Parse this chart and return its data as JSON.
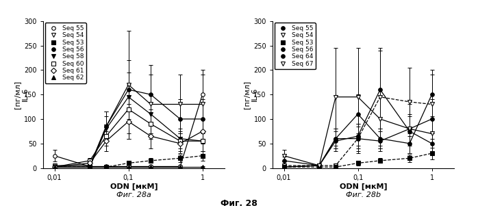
{
  "fig_title": "Фиг. 28",
  "fig_a_title": "Фиг. 28a",
  "fig_b_title": "Фиг. 28b",
  "xlabel": "ODN [мкМ]",
  "ylabel_top": "[пг/мл]",
  "ylabel_bottom": "IL-6",
  "x_values": [
    0.01,
    0.03,
    0.05,
    0.1,
    0.2,
    0.5,
    1.0
  ],
  "ylim_a": [
    0,
    300
  ],
  "ylim_b": [
    0,
    300
  ],
  "yticks_a": [
    0,
    50,
    100,
    150,
    200,
    250,
    300
  ],
  "yticks_b": [
    0,
    50,
    100,
    150,
    200,
    250,
    300
  ],
  "panel_a": {
    "series": [
      {
        "name": "Seq 55",
        "y": [
          25,
          3,
          3,
          3,
          3,
          3,
          150
        ],
        "yerr": [
          12,
          2,
          2,
          2,
          2,
          2,
          50
        ],
        "marker": "o",
        "linestyle": "-",
        "color": "#000000",
        "filled": false
      },
      {
        "name": "Seq 54",
        "y": [
          5,
          5,
          85,
          170,
          130,
          130,
          130
        ],
        "yerr": [
          3,
          3,
          30,
          110,
          60,
          60,
          60
        ],
        "marker": "v",
        "linestyle": "-",
        "color": "#000000",
        "filled": false
      },
      {
        "name": "Seq 53",
        "y": [
          2,
          2,
          2,
          10,
          15,
          20,
          25
        ],
        "yerr": [
          1,
          1,
          1,
          5,
          5,
          8,
          10
        ],
        "marker": "s",
        "linestyle": "--",
        "color": "#000000",
        "filled": true
      },
      {
        "name": "Seq 56",
        "y": [
          2,
          2,
          85,
          160,
          150,
          100,
          100
        ],
        "yerr": [
          1,
          1,
          30,
          60,
          60,
          40,
          40
        ],
        "marker": "o",
        "linestyle": "-",
        "color": "#000000",
        "filled": true
      },
      {
        "name": "Seq 58",
        "y": [
          2,
          2,
          80,
          145,
          110,
          60,
          55
        ],
        "yerr": [
          1,
          1,
          25,
          50,
          40,
          20,
          20
        ],
        "marker": "v",
        "linestyle": "-",
        "color": "#000000",
        "filled": true
      },
      {
        "name": "Seq 60",
        "y": [
          2,
          15,
          65,
          120,
          90,
          55,
          55
        ],
        "yerr": [
          1,
          5,
          20,
          50,
          30,
          20,
          20
        ],
        "marker": "s",
        "linestyle": "-",
        "color": "#000000",
        "filled": false
      },
      {
        "name": "Seq 61",
        "y": [
          2,
          10,
          55,
          95,
          65,
          50,
          75
        ],
        "yerr": [
          1,
          5,
          20,
          35,
          25,
          20,
          25
        ],
        "marker": "D",
        "linestyle": "-",
        "color": "#000000",
        "filled": false
      },
      {
        "name": "Seq 62",
        "y": [
          2,
          2,
          2,
          2,
          2,
          2,
          2
        ],
        "yerr": [
          1,
          1,
          1,
          1,
          1,
          1,
          1
        ],
        "marker": "^",
        "linestyle": "-",
        "color": "#000000",
        "filled": true
      }
    ]
  },
  "panel_b": {
    "series": [
      {
        "name": "Seq 55",
        "y": [
          15,
          5,
          60,
          110,
          60,
          50,
          150
        ],
        "yerr": [
          8,
          3,
          20,
          40,
          20,
          20,
          50
        ],
        "marker": "o",
        "linestyle": "-",
        "color": "#000000",
        "filled": true
      },
      {
        "name": "Seq 54",
        "y": [
          5,
          5,
          5,
          60,
          145,
          135,
          130
        ],
        "yerr": [
          3,
          3,
          3,
          30,
          100,
          70,
          60
        ],
        "marker": "v",
        "linestyle": "--",
        "color": "#000000",
        "filled": false
      },
      {
        "name": "Seq 53",
        "y": [
          2,
          2,
          2,
          10,
          15,
          20,
          30
        ],
        "yerr": [
          1,
          1,
          1,
          5,
          5,
          8,
          12
        ],
        "marker": "s",
        "linestyle": "--",
        "color": "#000000",
        "filled": true
      },
      {
        "name": "Seq 56",
        "y": [
          2,
          5,
          60,
          60,
          55,
          80,
          100
        ],
        "yerr": [
          1,
          3,
          20,
          25,
          20,
          30,
          40
        ],
        "marker": "o",
        "linestyle": "-",
        "color": "#000000",
        "filled": true
      },
      {
        "name": "Seq 64",
        "y": [
          2,
          5,
          55,
          65,
          160,
          75,
          50
        ],
        "yerr": [
          1,
          3,
          20,
          25,
          80,
          30,
          20
        ],
        "marker": "o",
        "linestyle": "-",
        "color": "#000000",
        "filled": true
      },
      {
        "name": "Seq 67",
        "y": [
          25,
          5,
          145,
          145,
          100,
          80,
          70
        ],
        "yerr": [
          12,
          3,
          100,
          100,
          60,
          50,
          35
        ],
        "marker": "v",
        "linestyle": "-",
        "color": "#000000",
        "filled": false
      }
    ]
  },
  "background_color": "#ffffff",
  "legend_fontsize": 6.5,
  "tick_fontsize": 7,
  "label_fontsize": 8,
  "title_fontsize": 9
}
